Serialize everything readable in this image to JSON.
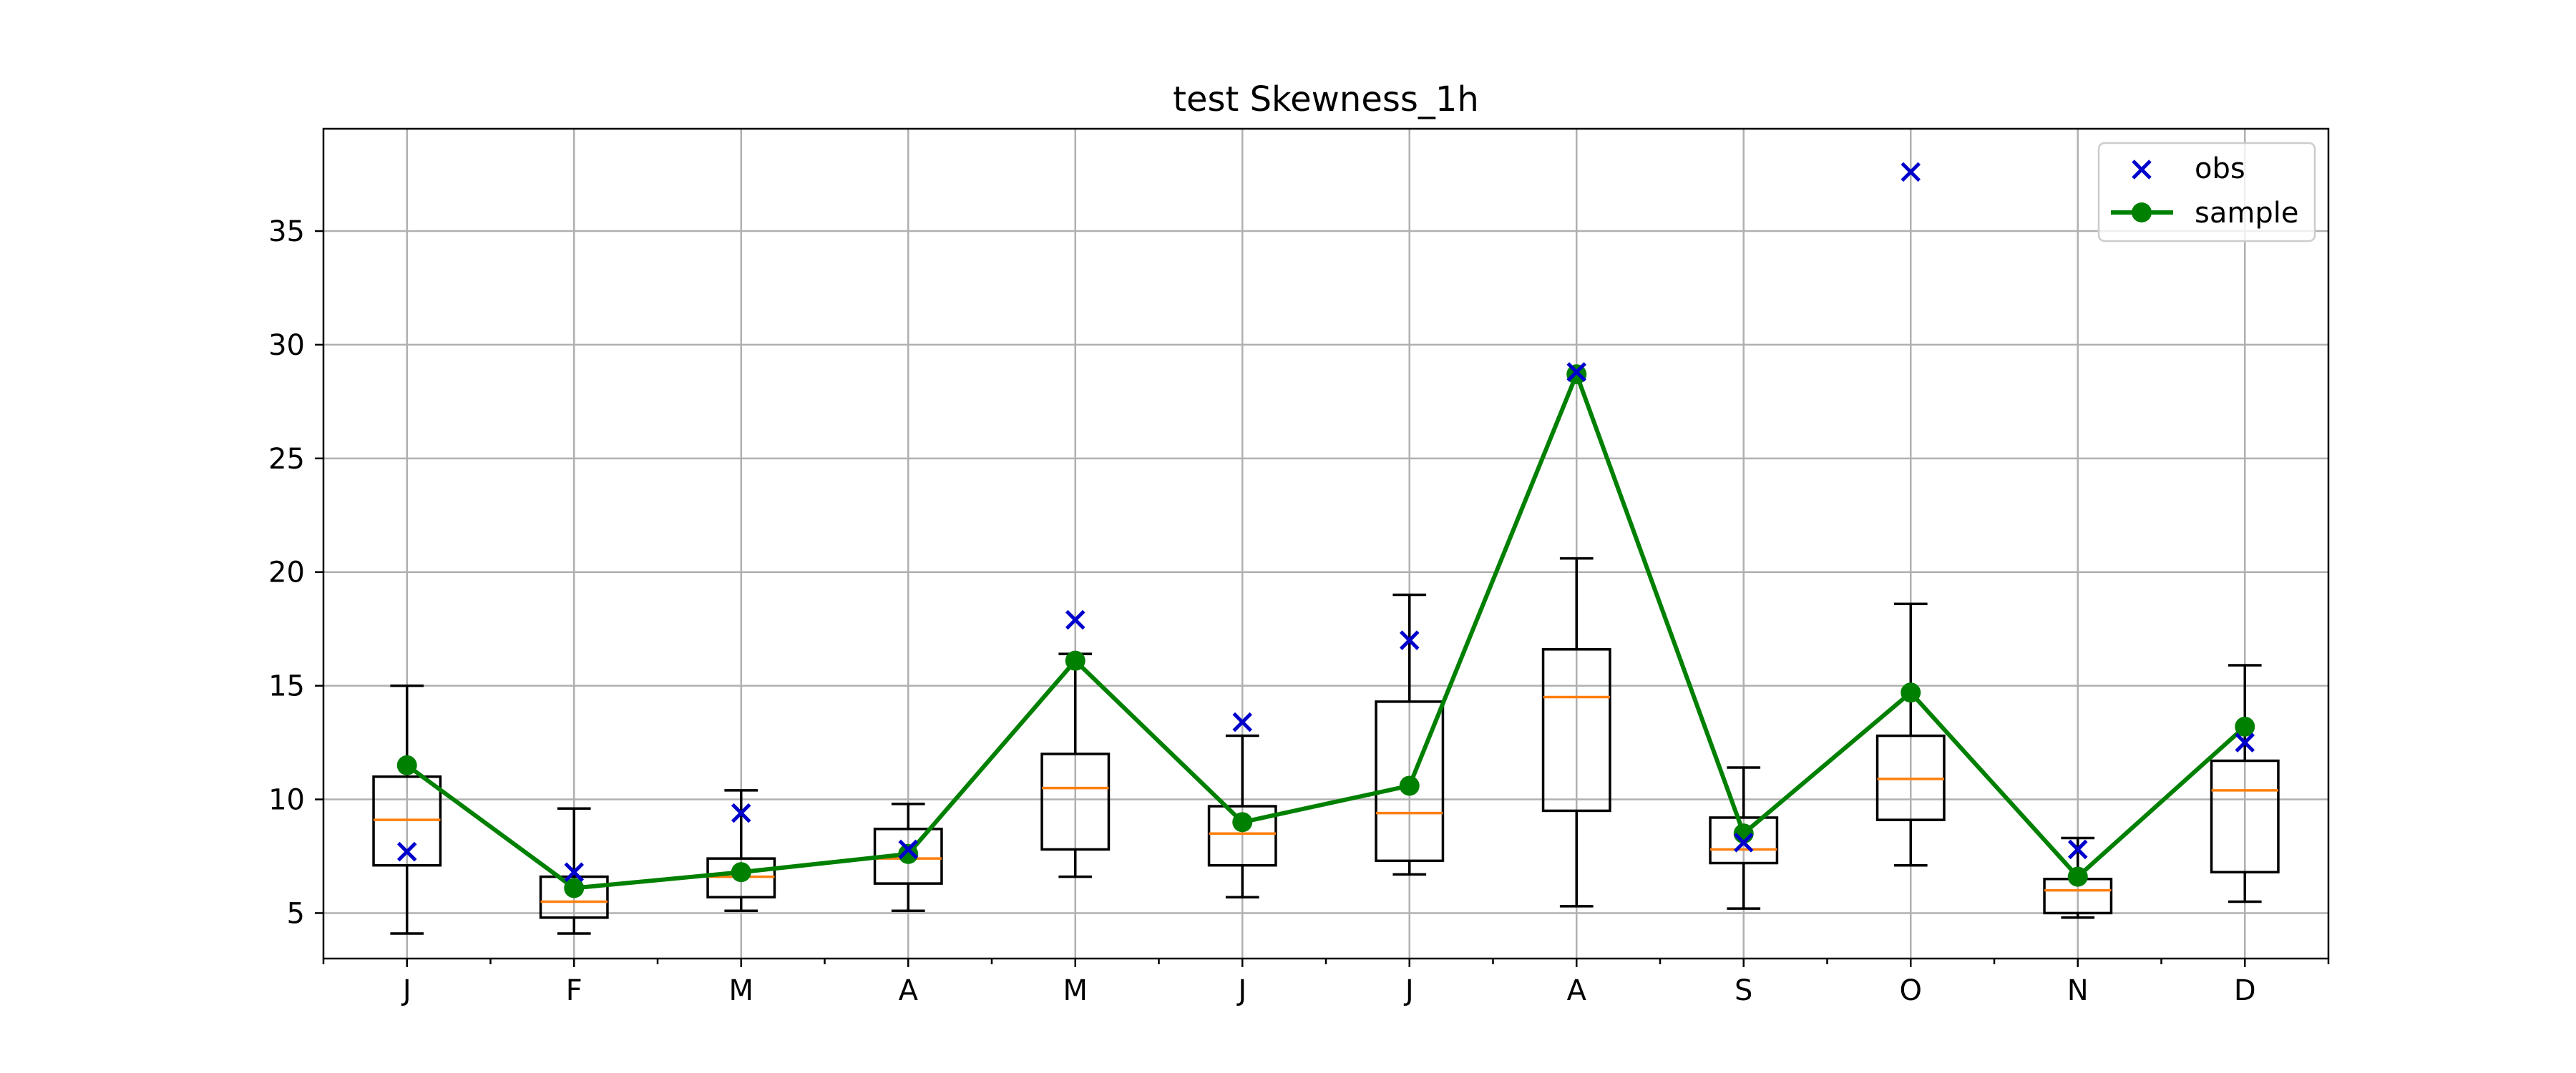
{
  "chart_data": {
    "type": "box",
    "title": "test Skewness_1h",
    "xlabel": "",
    "ylabel": "",
    "categories": [
      "J",
      "F",
      "M",
      "A",
      "M",
      "J",
      "J",
      "A",
      "S",
      "O",
      "N",
      "D"
    ],
    "ylim": [
      3,
      39.5
    ],
    "yticks": [
      5,
      10,
      15,
      20,
      25,
      30,
      35
    ],
    "grid": true,
    "legend_position": "top-right",
    "boxes": [
      {
        "whisker_low": 4.1,
        "q1": 7.1,
        "median": 9.1,
        "q3": 11.0,
        "whisker_high": 15.0
      },
      {
        "whisker_low": 4.1,
        "q1": 4.8,
        "median": 5.5,
        "q3": 6.6,
        "whisker_high": 9.6
      },
      {
        "whisker_low": 5.1,
        "q1": 5.7,
        "median": 6.6,
        "q3": 7.4,
        "whisker_high": 10.4
      },
      {
        "whisker_low": 5.1,
        "q1": 6.3,
        "median": 7.4,
        "q3": 8.7,
        "whisker_high": 9.8
      },
      {
        "whisker_low": 6.6,
        "q1": 7.8,
        "median": 10.5,
        "q3": 12.0,
        "whisker_high": 16.4
      },
      {
        "whisker_low": 5.7,
        "q1": 7.1,
        "median": 8.5,
        "q3": 9.7,
        "whisker_high": 12.8
      },
      {
        "whisker_low": 6.7,
        "q1": 7.3,
        "median": 9.4,
        "q3": 14.3,
        "whisker_high": 19.0
      },
      {
        "whisker_low": 5.3,
        "q1": 9.5,
        "median": 14.5,
        "q3": 16.6,
        "whisker_high": 20.6
      },
      {
        "whisker_low": 5.2,
        "q1": 7.2,
        "median": 7.8,
        "q3": 9.2,
        "whisker_high": 11.4
      },
      {
        "whisker_low": 7.1,
        "q1": 9.1,
        "median": 10.9,
        "q3": 12.8,
        "whisker_high": 18.6
      },
      {
        "whisker_low": 4.8,
        "q1": 5.0,
        "median": 6.0,
        "q3": 6.5,
        "whisker_high": 8.3
      },
      {
        "whisker_low": 5.5,
        "q1": 6.8,
        "median": 10.4,
        "q3": 11.7,
        "whisker_high": 15.9
      }
    ],
    "series": [
      {
        "name": "obs",
        "style": "x-marker",
        "color": "#0000cc",
        "values": [
          7.7,
          6.8,
          9.4,
          7.8,
          17.9,
          13.4,
          17.0,
          28.8,
          8.1,
          37.6,
          7.8,
          12.5
        ]
      },
      {
        "name": "sample",
        "style": "line-dot",
        "color": "#008000",
        "values": [
          11.5,
          6.1,
          6.8,
          7.6,
          16.1,
          9.0,
          10.6,
          28.7,
          8.5,
          14.7,
          6.6,
          13.2
        ]
      }
    ],
    "colors": {
      "median": "#ff7f0e",
      "grid": "#b0b0b0"
    }
  }
}
